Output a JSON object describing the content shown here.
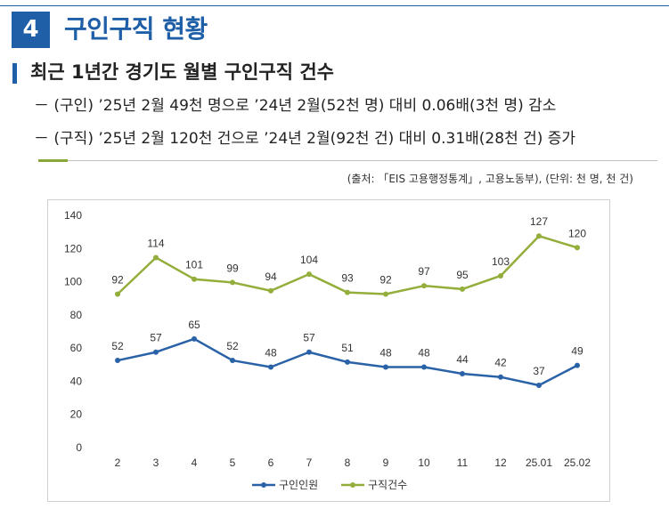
{
  "section": {
    "number": "4",
    "title": "구인구직 현황"
  },
  "subtitle": "최근 1년간 경기도 월별 구인구직 건수",
  "bullets": [
    "－ (구인) ’25년 2월 49천 명으로 ’24년 2월(52천 명) 대비 0.06배(3천 명) 감소",
    "－ (구직) ’25년 2월 120천 건으로 ’24년 2월(92천 건) 대비 0.31배(28천 건) 증가"
  ],
  "source": "(출처: 「EIS 고용행정통계」, 고용노동부), (단위: 천 명, 천 건)",
  "colors": {
    "brand_blue": "#1f5fa8",
    "series_blue": "#2a62a7",
    "series_green": "#93ae3a"
  },
  "chart_data": {
    "type": "line",
    "categories": [
      "2",
      "3",
      "4",
      "5",
      "6",
      "7",
      "8",
      "9",
      "10",
      "11",
      "12",
      "25.01",
      "25.02"
    ],
    "ylim": [
      0,
      140
    ],
    "yticks": [
      0,
      20,
      40,
      60,
      80,
      100,
      120,
      140
    ],
    "grid": false,
    "legend_position": "bottom",
    "series": [
      {
        "name": "구인인원",
        "values": [
          52,
          57,
          65,
          52,
          48,
          57,
          51,
          48,
          48,
          44,
          42,
          37,
          49
        ]
      },
      {
        "name": "구직건수",
        "values": [
          92,
          114,
          101,
          99,
          94,
          104,
          93,
          92,
          97,
          95,
          103,
          127,
          120
        ]
      }
    ]
  }
}
